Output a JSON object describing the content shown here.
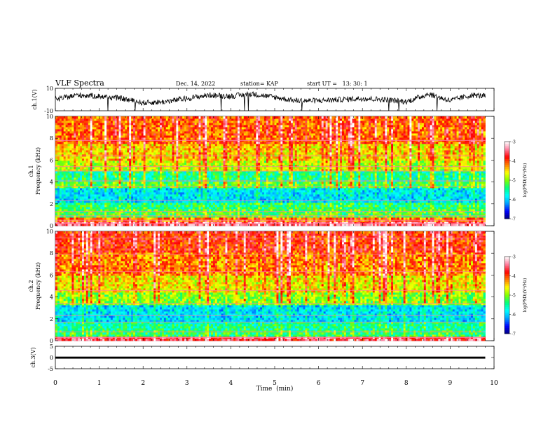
{
  "header": {
    "title": "VLF Spectra",
    "date": "Dec. 14, 2022",
    "station": "station= KAP",
    "start_ut": "start UT =   13: 30: 1"
  },
  "chart_data": [
    {
      "type": "line",
      "panel": "ch1-waveform",
      "ylabel": "ch.1(V)",
      "ylim": [
        -10,
        10
      ],
      "y_ticks": [
        "10",
        "-10"
      ],
      "xlim": [
        0,
        10
      ],
      "baseline_level": 2,
      "trend": {
        "t": [
          0,
          0.5,
          1,
          1.5,
          2,
          2.5,
          3,
          3.5,
          4,
          4.5,
          5,
          5.5,
          6,
          6.5,
          7,
          7.5,
          8,
          8.5,
          9,
          9.5,
          9.8
        ],
        "v": [
          0,
          4,
          3,
          1,
          -3,
          -2,
          1,
          4,
          3,
          5,
          2,
          -1,
          -1,
          0,
          1,
          0,
          -2,
          5,
          -1,
          4,
          3
        ]
      }
    },
    {
      "type": "heatmap",
      "panel": "ch1-spectrogram",
      "ylabel": "ch.1\nFrequency  (kHz)",
      "ylim": [
        0,
        10
      ],
      "y_ticks": [
        "0",
        "2",
        "4",
        "6",
        "8",
        "10"
      ],
      "xlim": [
        0,
        9.8
      ],
      "colorbar": {
        "label": "log(PSD)(V²/Hz)",
        "range": [
          -7,
          -3
        ],
        "ticks": [
          "-3",
          "-4",
          "-5",
          "-6",
          "-7"
        ]
      },
      "bands": [
        {
          "from": 0,
          "to": 0.4,
          "level": -3.5
        },
        {
          "from": 0.4,
          "to": 0.7,
          "level": -4.2
        },
        {
          "from": 0.7,
          "to": 1.5,
          "level": -5.2
        },
        {
          "from": 1.5,
          "to": 2.2,
          "level": -5.4
        },
        {
          "from": 2.2,
          "to": 3.5,
          "level": -5.9
        },
        {
          "from": 3.5,
          "to": 4.0,
          "level": -5.2
        },
        {
          "from": 4.0,
          "to": 5.0,
          "level": -5.5
        },
        {
          "from": 5.0,
          "to": 6.0,
          "level": -4.8
        },
        {
          "from": 6.0,
          "to": 7.5,
          "level": -4.5
        },
        {
          "from": 7.5,
          "to": 10.0,
          "level": -4.1
        }
      ],
      "lines_khz": [
        0.2,
        0.5,
        0.9,
        1.3,
        2.3,
        3.6,
        4.1,
        5.0,
        5.4,
        6.4,
        7.8
      ]
    },
    {
      "type": "heatmap",
      "panel": "ch2-spectrogram",
      "ylabel": "ch.2\nFrequency  (kHz)",
      "ylim": [
        0,
        10
      ],
      "y_ticks": [
        "0",
        "2",
        "4",
        "6",
        "8",
        "10"
      ],
      "xlim": [
        0,
        9.8
      ],
      "colorbar": {
        "label": "log(PSD)(V²/Hz)",
        "range": [
          -7,
          -3
        ],
        "ticks": [
          "-3",
          "-4",
          "-5",
          "-6",
          "-7"
        ]
      },
      "bands": [
        {
          "from": 0,
          "to": 0.3,
          "level": -3.6
        },
        {
          "from": 0.3,
          "to": 1.0,
          "level": -5.3
        },
        {
          "from": 1.0,
          "to": 1.8,
          "level": -5.5
        },
        {
          "from": 1.8,
          "to": 3.3,
          "level": -5.9
        },
        {
          "from": 3.3,
          "to": 4.5,
          "level": -5.0
        },
        {
          "from": 4.5,
          "to": 6.0,
          "level": -4.6
        },
        {
          "from": 6.0,
          "to": 8.0,
          "level": -4.2
        },
        {
          "from": 8.0,
          "to": 10.0,
          "level": -3.9
        }
      ],
      "lines_khz": [
        0.3,
        0.8,
        1.7,
        2.3,
        3.4,
        4.6,
        6.3,
        7.9,
        9.4
      ]
    },
    {
      "type": "line",
      "panel": "ch3-waveform",
      "ylabel": "ch.3(V)",
      "ylim": [
        -5,
        5
      ],
      "y_ticks": [
        "5",
        "0",
        "-5"
      ],
      "xlim": [
        0,
        10
      ],
      "band": {
        "from_t": 0,
        "to_t": 9.8,
        "low": -0.5,
        "high": 0.4
      }
    }
  ],
  "x_axis": {
    "label": "Time  (min)",
    "ticks": [
      "0",
      "1",
      "2",
      "3",
      "4",
      "5",
      "6",
      "7",
      "8",
      "9",
      "10"
    ]
  },
  "colors": {
    "colormap": [
      "#00007f",
      "#0000ff",
      "#00a0ff",
      "#00ffff",
      "#00ff80",
      "#80ff00",
      "#ffff00",
      "#ff8000",
      "#ff0000",
      "#ff80a0",
      "#ffffff"
    ]
  }
}
